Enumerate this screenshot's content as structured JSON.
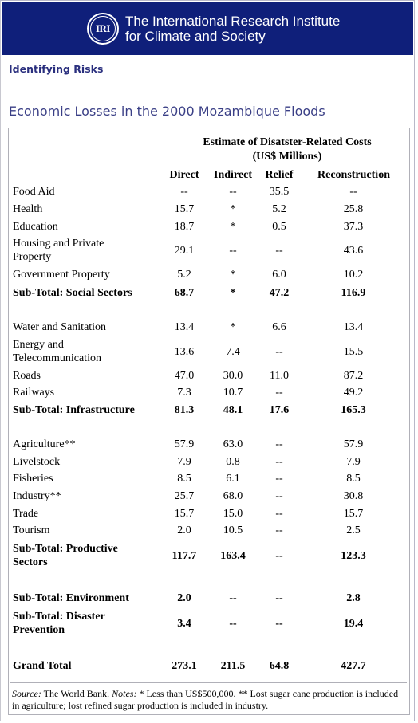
{
  "header": {
    "logo_text": "IRI",
    "org_line1": "The International Research Institute",
    "org_line2": "for Climate and Society"
  },
  "section_label": "Identifying Risks",
  "page_title": "Economic Losses in the 2000 Mozambique Floods",
  "table": {
    "super_header_line1": "Estimate of Disatster-Related Costs",
    "super_header_line2": "(US$ Millions)",
    "columns": [
      "Direct",
      "Indirect",
      "Relief",
      "Reconstruction"
    ],
    "rows": [
      {
        "label": [
          "Food Aid"
        ],
        "values": [
          "--",
          "--",
          "35.5",
          "--"
        ],
        "bold": false
      },
      {
        "label": [
          "Health"
        ],
        "values": [
          "15.7",
          "*",
          "5.2",
          "25.8"
        ],
        "bold": false
      },
      {
        "label": [
          "Education"
        ],
        "values": [
          "18.7",
          "*",
          "0.5",
          "37.3"
        ],
        "bold": false
      },
      {
        "label": [
          "Housing and Private",
          "Property"
        ],
        "values": [
          "29.1",
          "--",
          "--",
          "43.6"
        ],
        "bold": false
      },
      {
        "label": [
          "Government Property"
        ],
        "values": [
          "5.2",
          "*",
          "6.0",
          "10.2"
        ],
        "bold": false
      },
      {
        "label": [
          "Sub-Total: Social Sectors"
        ],
        "values": [
          "68.7",
          "*",
          "47.2",
          "116.9"
        ],
        "bold": true
      },
      {
        "label": [
          "Water and Sanitation"
        ],
        "values": [
          "13.4",
          "*",
          "6.6",
          "13.4"
        ],
        "bold": false
      },
      {
        "label": [
          "Energy and",
          "Telecommunication"
        ],
        "values": [
          "13.6",
          "7.4",
          "--",
          "15.5"
        ],
        "bold": false
      },
      {
        "label": [
          "Roads"
        ],
        "values": [
          "47.0",
          "30.0",
          "11.0",
          "87.2"
        ],
        "bold": false
      },
      {
        "label": [
          "Railways"
        ],
        "values": [
          "7.3",
          "10.7",
          "--",
          "49.2"
        ],
        "bold": false
      },
      {
        "label": [
          "Sub-Total: Infrastructure"
        ],
        "values": [
          "81.3",
          "48.1",
          "17.6",
          "165.3"
        ],
        "bold": true
      },
      {
        "label": [
          "Agriculture**"
        ],
        "values": [
          "57.9",
          "63.0",
          "--",
          "57.9"
        ],
        "bold": false
      },
      {
        "label": [
          "Livelstock"
        ],
        "values": [
          "7.9",
          "0.8",
          "--",
          "7.9"
        ],
        "bold": false
      },
      {
        "label": [
          "Fisheries"
        ],
        "values": [
          "8.5",
          "6.1",
          "--",
          "8.5"
        ],
        "bold": false
      },
      {
        "label": [
          "Industry**"
        ],
        "values": [
          "25.7",
          "68.0",
          "--",
          "30.8"
        ],
        "bold": false
      },
      {
        "label": [
          "Trade"
        ],
        "values": [
          "15.7",
          "15.0",
          "--",
          "15.7"
        ],
        "bold": false
      },
      {
        "label": [
          "Tourism"
        ],
        "values": [
          "2.0",
          "10.5",
          "--",
          "2.5"
        ],
        "bold": false
      },
      {
        "label": [
          "Sub-Total: Productive",
          "Sectors"
        ],
        "values": [
          "117.7",
          "163.4",
          "--",
          "123.3"
        ],
        "bold": true
      },
      {
        "label": [
          "Sub-Total: Environment"
        ],
        "values": [
          "2.0",
          "--",
          "--",
          "2.8"
        ],
        "bold": true
      },
      {
        "label": [
          "Sub-Total: Disaster",
          "Prevention"
        ],
        "values": [
          "3.4",
          "--",
          "--",
          "19.4"
        ],
        "bold": true
      },
      {
        "label": [
          "Grand Total"
        ],
        "values": [
          "273.1",
          "211.5",
          "64.8",
          "427.7"
        ],
        "bold": true
      }
    ]
  },
  "footnote": {
    "source_label": "Source:",
    "source_text": " The World Bank. ",
    "notes_label": "Notes:",
    "notes_text": " * Less than US$500,000. ** Lost sugar cane production is included in agriculture; lost refined sugar production is included in industry."
  },
  "colors": {
    "banner": "#0f1f7a",
    "section_label": "#2a2f7e",
    "title": "#3a3f86"
  }
}
